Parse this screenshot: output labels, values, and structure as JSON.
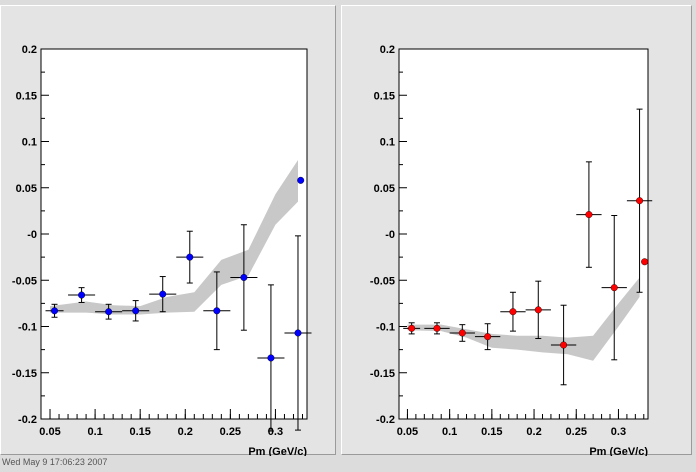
{
  "footer_text": "Wed May 9 17:06:23 2007",
  "chart_data": [
    {
      "type": "scatter",
      "xlabel": "Pm (GeV/c)",
      "ylabel": "",
      "xlim": [
        0.04,
        0.335
      ],
      "ylim": [
        -0.2,
        0.2
      ],
      "x_ticks": [
        "0.05",
        "0.1",
        "0.15",
        "0.2",
        "0.25",
        "0.3"
      ],
      "x_tick_values": [
        0.05,
        0.1,
        0.15,
        0.2,
        0.25,
        0.3
      ],
      "y_ticks": [
        "0.2",
        "0.15",
        "0.1",
        "0.05",
        "-0",
        "-0.05",
        "-0.1",
        "-0.15",
        "-0.2"
      ],
      "y_tick_values": [
        0.2,
        0.15,
        0.1,
        0.05,
        0,
        -0.05,
        -0.1,
        -0.15,
        -0.2
      ],
      "marker_color": "#0000ff",
      "band_color": "#c8c8c8",
      "points": [
        {
          "x": 0.055,
          "y": -0.083,
          "xerr": 0.01,
          "yerr": 0.007
        },
        {
          "x": 0.085,
          "y": -0.066,
          "xerr": 0.015,
          "yerr": 0.008
        },
        {
          "x": 0.115,
          "y": -0.084,
          "xerr": 0.015,
          "yerr": 0.008
        },
        {
          "x": 0.145,
          "y": -0.083,
          "xerr": 0.015,
          "yerr": 0.011
        },
        {
          "x": 0.175,
          "y": -0.065,
          "xerr": 0.015,
          "yerr": 0.019
        },
        {
          "x": 0.205,
          "y": -0.025,
          "xerr": 0.015,
          "yerr": 0.028
        },
        {
          "x": 0.235,
          "y": -0.083,
          "xerr": 0.015,
          "yerr": 0.042
        },
        {
          "x": 0.265,
          "y": -0.047,
          "xerr": 0.015,
          "yerr": 0.057
        },
        {
          "x": 0.295,
          "y": -0.134,
          "xerr": 0.015,
          "yerr": 0.079
        },
        {
          "x": 0.325,
          "y": -0.107,
          "xerr": 0.015,
          "yerr": 0.105
        },
        {
          "x": 0.328,
          "y": 0.058,
          "xerr": 0,
          "yerr": 0
        }
      ],
      "band": {
        "x": [
          0.05,
          0.09,
          0.12,
          0.15,
          0.18,
          0.21,
          0.24,
          0.27,
          0.3,
          0.325
        ],
        "upper": [
          -0.078,
          -0.073,
          -0.077,
          -0.078,
          -0.068,
          -0.063,
          -0.028,
          -0.017,
          0.043,
          0.08
        ],
        "lower": [
          -0.085,
          -0.085,
          -0.087,
          -0.087,
          -0.085,
          -0.084,
          -0.055,
          -0.045,
          0.01,
          0.035
        ]
      }
    },
    {
      "type": "scatter",
      "xlabel": "Pm (GeV/c)",
      "ylabel": "",
      "xlim": [
        0.04,
        0.335
      ],
      "ylim": [
        -0.2,
        0.2
      ],
      "x_ticks": [
        "0.05",
        "0.1",
        "0.15",
        "0.2",
        "0.25",
        "0.3"
      ],
      "x_tick_values": [
        0.05,
        0.1,
        0.15,
        0.2,
        0.25,
        0.3
      ],
      "y_ticks": [
        "0.2",
        "0.15",
        "0.1",
        "0.05",
        "-0",
        "-0.05",
        "-0.1",
        "-0.15",
        "-0.2"
      ],
      "y_tick_values": [
        0.2,
        0.15,
        0.1,
        0.05,
        0,
        -0.05,
        -0.1,
        -0.15,
        -0.2
      ],
      "marker_color": "#ff0000",
      "band_color": "#c8c8c8",
      "points": [
        {
          "x": 0.055,
          "y": -0.102,
          "xerr": 0.01,
          "yerr": 0.006
        },
        {
          "x": 0.085,
          "y": -0.102,
          "xerr": 0.015,
          "yerr": 0.006
        },
        {
          "x": 0.115,
          "y": -0.107,
          "xerr": 0.015,
          "yerr": 0.009
        },
        {
          "x": 0.145,
          "y": -0.111,
          "xerr": 0.015,
          "yerr": 0.014
        },
        {
          "x": 0.175,
          "y": -0.084,
          "xerr": 0.015,
          "yerr": 0.021
        },
        {
          "x": 0.205,
          "y": -0.082,
          "xerr": 0.015,
          "yerr": 0.031
        },
        {
          "x": 0.235,
          "y": -0.12,
          "xerr": 0.015,
          "yerr": 0.043
        },
        {
          "x": 0.265,
          "y": 0.021,
          "xerr": 0.015,
          "yerr": 0.057
        },
        {
          "x": 0.295,
          "y": -0.058,
          "xerr": 0.015,
          "yerr": 0.078
        },
        {
          "x": 0.325,
          "y": 0.036,
          "xerr": 0.015,
          "yerr": 0.099
        },
        {
          "x": 0.331,
          "y": -0.03,
          "xerr": 0,
          "yerr": 0
        }
      ],
      "band": {
        "x": [
          0.05,
          0.09,
          0.12,
          0.15,
          0.18,
          0.21,
          0.24,
          0.27,
          0.3,
          0.325
        ],
        "upper": [
          -0.098,
          -0.098,
          -0.103,
          -0.108,
          -0.11,
          -0.11,
          -0.112,
          -0.11,
          -0.075,
          -0.047
        ],
        "lower": [
          -0.104,
          -0.105,
          -0.112,
          -0.123,
          -0.125,
          -0.128,
          -0.13,
          -0.137,
          -0.1,
          -0.068
        ]
      }
    }
  ]
}
